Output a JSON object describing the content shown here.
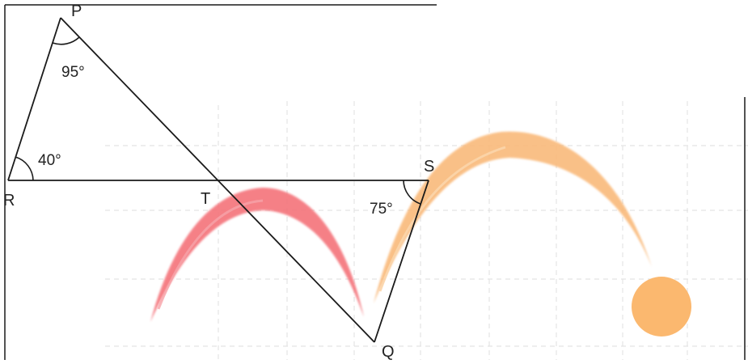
{
  "diagram": {
    "points": {
      "P": "P",
      "Q": "Q",
      "R": "R",
      "S": "S",
      "T": "T"
    },
    "angles": {
      "at_P": "95°",
      "at_R": "40°",
      "at_S": "75°"
    },
    "colors": {
      "line": "#1a1a1a",
      "grid": "#dcdcdc",
      "red_arc": "#f4737a",
      "orange_arc": "#f9b877",
      "orange_ball": "#fbb86f"
    }
  }
}
